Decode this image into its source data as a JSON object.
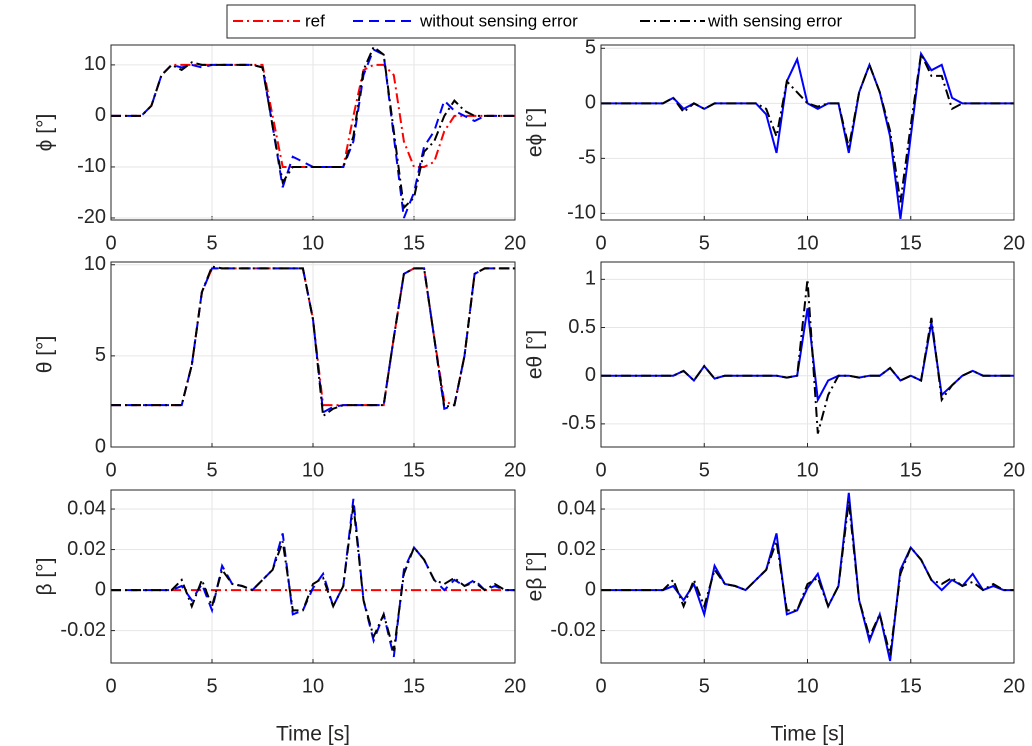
{
  "chart_data": [
    {
      "type": "line",
      "ylabel": "ϕ [°]",
      "x": [
        0,
        0.5,
        1,
        1.5,
        2,
        2.5,
        3,
        3.5,
        4,
        4.5,
        5,
        5.5,
        6,
        6.5,
        7,
        7.5,
        8,
        8.5,
        9,
        9.5,
        10,
        10.5,
        11,
        11.5,
        12,
        12.5,
        13,
        13.5,
        14,
        14.5,
        15,
        15.5,
        16,
        16.5,
        17,
        17.5,
        18,
        18.5,
        19,
        19.5,
        20
      ],
      "xlim": [
        0,
        20
      ],
      "xticks": [
        0,
        5,
        10,
        15,
        20
      ],
      "ylim": [
        -20.4,
        13.9
      ],
      "yticks": [
        -20,
        -10,
        0,
        10
      ],
      "grid": true,
      "series": [
        {
          "name": "ref",
          "color": "#ff0000",
          "dash": "dashdot",
          "values": [
            0,
            0,
            0,
            0,
            2,
            8,
            10,
            10,
            10,
            10,
            10,
            10,
            10,
            10,
            10,
            10,
            0,
            -10,
            -10,
            -10,
            -10,
            -10,
            -10,
            -10,
            0,
            9,
            10,
            10,
            8,
            -5,
            -10,
            -10,
            -9,
            -3,
            0,
            0,
            0,
            0,
            0,
            0,
            0
          ]
        },
        {
          "name": "without sensing error",
          "color": "#0000ff",
          "dash": "dashed",
          "values": [
            0,
            0,
            0,
            0,
            2,
            8,
            10,
            9.5,
            10,
            9.5,
            10,
            10,
            10,
            10,
            10,
            9.5,
            -2,
            -14,
            -8,
            -9,
            -10,
            -10,
            -10,
            -10,
            -5,
            8,
            13,
            12,
            -4,
            -20,
            -15,
            -6,
            -3,
            3,
            1,
            0,
            -1,
            0,
            0,
            0,
            0
          ]
        },
        {
          "name": "with sensing error",
          "color": "#000000",
          "dash": "dashdot",
          "values": [
            0,
            0,
            0,
            0,
            2,
            8,
            10,
            9,
            10.5,
            10,
            10,
            10,
            10,
            10,
            10,
            9.5,
            -2,
            -13,
            -10,
            -10,
            -10,
            -10,
            -10,
            -10,
            -4,
            9,
            13.5,
            12,
            -3,
            -18,
            -16,
            -7,
            -5,
            0,
            3,
            1,
            0,
            0,
            0,
            0,
            0
          ]
        }
      ]
    },
    {
      "type": "line",
      "ylabel": "eϕ [°]",
      "x": [
        0,
        0.5,
        1,
        1.5,
        2,
        2.5,
        3,
        3.5,
        4,
        4.5,
        5,
        5.5,
        6,
        6.5,
        7,
        7.5,
        8,
        8.5,
        9,
        9.5,
        10,
        10.5,
        11,
        11.5,
        12,
        12.5,
        13,
        13.5,
        14,
        14.5,
        15,
        15.5,
        16,
        16.5,
        17,
        17.5,
        18,
        18.5,
        19,
        19.5,
        20
      ],
      "xlim": [
        0,
        20
      ],
      "xticks": [
        0,
        5,
        10,
        15,
        20
      ],
      "ylim": [
        -10.6,
        5.3
      ],
      "yticks": [
        -10,
        -5,
        0,
        5
      ],
      "grid": true,
      "series": [
        {
          "name": "without sensing error",
          "color": "#0000ff",
          "dash": "solid",
          "values": [
            0,
            0,
            0,
            0,
            0,
            0,
            0,
            0.5,
            -0.5,
            0,
            -0.5,
            0,
            0,
            0,
            0,
            0,
            -1,
            -4.5,
            2,
            4,
            0,
            -0.5,
            0,
            0,
            -4.5,
            1,
            3.5,
            1,
            -3,
            -10.5,
            -3,
            4.5,
            3,
            3.5,
            0.5,
            0,
            0,
            0,
            0,
            0,
            0
          ]
        },
        {
          "name": "with sensing error",
          "color": "#000000",
          "dash": "dashdot",
          "values": [
            0,
            0,
            0,
            0,
            0,
            0,
            0,
            0.5,
            -0.8,
            0,
            -0.5,
            0,
            0,
            0,
            0,
            0,
            -0.5,
            -3,
            2,
            1,
            0,
            -0.3,
            0,
            0,
            -4,
            1,
            3.5,
            1,
            -2.5,
            -9,
            -2,
            4.5,
            2.5,
            2.5,
            -0.5,
            0,
            0,
            0,
            0,
            0,
            0
          ]
        }
      ]
    },
    {
      "type": "line",
      "ylabel": "θ [°]",
      "x": [
        0,
        0.5,
        1,
        1.5,
        2,
        2.5,
        3,
        3.5,
        4,
        4.5,
        5,
        5.5,
        6,
        6.5,
        7,
        7.5,
        8,
        8.5,
        9,
        9.5,
        10,
        10.5,
        11,
        11.5,
        12,
        12.5,
        13,
        13.5,
        14,
        14.5,
        15,
        15.5,
        16,
        16.5,
        17,
        17.5,
        18,
        18.5,
        19,
        19.5,
        20
      ],
      "xlim": [
        0,
        20
      ],
      "xticks": [
        0,
        5,
        10,
        15,
        20
      ],
      "ylim": [
        0,
        10.15
      ],
      "yticks": [
        0,
        5,
        10
      ],
      "grid": true,
      "series": [
        {
          "name": "ref",
          "color": "#ff0000",
          "dash": "dashdot",
          "values": [
            2.3,
            2.3,
            2.3,
            2.3,
            2.3,
            2.3,
            2.3,
            2.3,
            4.5,
            8.5,
            9.8,
            9.8,
            9.8,
            9.8,
            9.8,
            9.8,
            9.8,
            9.8,
            9.8,
            9.8,
            7,
            2.3,
            2.3,
            2.3,
            2.3,
            2.3,
            2.3,
            2.3,
            6,
            9.5,
            9.8,
            9.8,
            6,
            2.5,
            2.3,
            5,
            9.5,
            9.8,
            9.8,
            9.8,
            9.8
          ]
        },
        {
          "name": "without sensing error",
          "color": "#0000ff",
          "dash": "dashed",
          "values": [
            2.3,
            2.3,
            2.3,
            2.3,
            2.3,
            2.3,
            2.3,
            2.3,
            4.5,
            8.5,
            9.8,
            9.8,
            9.8,
            9.8,
            9.8,
            9.8,
            9.8,
            9.8,
            9.8,
            9.8,
            7,
            1.9,
            2.2,
            2.3,
            2.3,
            2.3,
            2.3,
            2.3,
            6,
            9.5,
            9.8,
            9.8,
            6,
            2.1,
            2.3,
            5,
            9.5,
            9.8,
            9.8,
            9.8,
            9.8
          ]
        },
        {
          "name": "with sensing error",
          "color": "#000000",
          "dash": "dashdot",
          "values": [
            2.3,
            2.3,
            2.3,
            2.3,
            2.3,
            2.3,
            2.3,
            2.3,
            4.5,
            8.5,
            9.9,
            9.8,
            9.8,
            9.8,
            9.8,
            9.8,
            9.8,
            9.8,
            9.8,
            9.8,
            7,
            1.7,
            2.1,
            2.3,
            2.3,
            2.3,
            2.3,
            2.3,
            6,
            9.5,
            9.8,
            9.8,
            6,
            2.2,
            2.3,
            5,
            9.5,
            9.8,
            9.8,
            9.8,
            9.8
          ]
        }
      ]
    },
    {
      "type": "line",
      "ylabel": "eθ [°]",
      "x": [
        0,
        0.5,
        1,
        1.5,
        2,
        2.5,
        3,
        3.5,
        4,
        4.5,
        5,
        5.5,
        6,
        6.5,
        7,
        7.5,
        8,
        8.5,
        9,
        9.5,
        10,
        10.5,
        11,
        11.5,
        12,
        12.5,
        13,
        13.5,
        14,
        14.5,
        15,
        15.5,
        16,
        16.5,
        17,
        17.5,
        18,
        18.5,
        19,
        19.5,
        20
      ],
      "xlim": [
        0,
        20
      ],
      "xticks": [
        0,
        5,
        10,
        15,
        20
      ],
      "ylim": [
        -0.74,
        1.18
      ],
      "yticks": [
        -0.5,
        0,
        0.5,
        1
      ],
      "grid": true,
      "series": [
        {
          "name": "without sensing error",
          "color": "#0000ff",
          "dash": "solid",
          "values": [
            0,
            0,
            0,
            0,
            0,
            0,
            0,
            0,
            0.05,
            -0.05,
            0.1,
            -0.03,
            0,
            0,
            0,
            0,
            0,
            0,
            -0.02,
            0,
            0.7,
            -0.25,
            -0.05,
            0,
            0,
            -0.02,
            0,
            0,
            0.08,
            -0.05,
            0,
            -0.05,
            0.55,
            -0.2,
            -0.1,
            0,
            0.05,
            0,
            0,
            0,
            0
          ]
        },
        {
          "name": "with sensing error",
          "color": "#000000",
          "dash": "dashdot",
          "values": [
            0,
            0,
            0,
            0,
            0,
            0,
            0,
            0,
            0.05,
            -0.05,
            0.1,
            -0.03,
            0,
            0,
            0,
            0,
            0,
            0,
            -0.02,
            0,
            1,
            -0.6,
            -0.2,
            0,
            0,
            -0.02,
            0,
            0,
            0.08,
            -0.05,
            0,
            -0.05,
            0.6,
            -0.25,
            -0.1,
            0,
            0.05,
            0,
            0,
            0,
            0
          ]
        }
      ]
    },
    {
      "type": "line",
      "ylabel": "β [°]",
      "xlabel": "Time [s]",
      "x": [
        0,
        0.5,
        1,
        1.5,
        2,
        2.5,
        3,
        3.5,
        4,
        4.5,
        5,
        5.5,
        6,
        6.5,
        7,
        7.5,
        8,
        8.5,
        9,
        9.5,
        10,
        10.5,
        11,
        11.5,
        12,
        12.5,
        13,
        13.5,
        14,
        14.5,
        15,
        15.5,
        16,
        16.5,
        17,
        17.5,
        18,
        18.5,
        19,
        19.5,
        20
      ],
      "xlim": [
        0,
        20
      ],
      "xticks": [
        0,
        5,
        10,
        15,
        20
      ],
      "ylim": [
        -0.036,
        0.0494
      ],
      "yticks": [
        -0.02,
        0,
        0.02,
        0.04
      ],
      "grid": true,
      "series": [
        {
          "name": "ref",
          "color": "#ff0000",
          "dash": "dashdot",
          "values": [
            0,
            0,
            0,
            0,
            0,
            0,
            0,
            0,
            0,
            0,
            0,
            0,
            0,
            0,
            0,
            0,
            0,
            0,
            0,
            0,
            0,
            0,
            0,
            0,
            0,
            0,
            0,
            0,
            0,
            0,
            0,
            0,
            0,
            0,
            0,
            0,
            0,
            0,
            0,
            0,
            0
          ]
        },
        {
          "name": "without sensing error",
          "color": "#0000ff",
          "dash": "dashed",
          "values": [
            0,
            0,
            0,
            0,
            0,
            0,
            0,
            0.002,
            -0.005,
            0.003,
            -0.01,
            0.012,
            0.003,
            0.002,
            0,
            0.005,
            0.01,
            0.028,
            -0.012,
            -0.01,
            0.001,
            0.008,
            -0.008,
            0.002,
            0.045,
            -0.005,
            -0.025,
            -0.012,
            -0.033,
            0.01,
            0.021,
            0.015,
            0.005,
            0,
            0.005,
            0.002,
            0.005,
            0,
            0.002,
            0,
            0
          ]
        },
        {
          "name": "with sensing error",
          "color": "#000000",
          "dash": "dashdot",
          "values": [
            0,
            0,
            0,
            0,
            0,
            0,
            0,
            0.005,
            -0.008,
            0.005,
            -0.008,
            0.01,
            0.003,
            0.002,
            0,
            0.005,
            0.01,
            0.024,
            -0.01,
            -0.01,
            0.003,
            0.006,
            -0.008,
            0.002,
            0.042,
            -0.005,
            -0.023,
            -0.012,
            -0.03,
            0.008,
            0.021,
            0.015,
            0.005,
            0.003,
            0.006,
            0.002,
            0.004,
            0,
            0.003,
            0,
            0
          ]
        }
      ]
    },
    {
      "type": "line",
      "ylabel": "eβ [°]",
      "xlabel": "Time [s]",
      "x": [
        0,
        0.5,
        1,
        1.5,
        2,
        2.5,
        3,
        3.5,
        4,
        4.5,
        5,
        5.5,
        6,
        6.5,
        7,
        7.5,
        8,
        8.5,
        9,
        9.5,
        10,
        10.5,
        11,
        11.5,
        12,
        12.5,
        13,
        13.5,
        14,
        14.5,
        15,
        15.5,
        16,
        16.5,
        17,
        17.5,
        18,
        18.5,
        19,
        19.5,
        20
      ],
      "xlim": [
        0,
        20
      ],
      "xticks": [
        0,
        5,
        10,
        15,
        20
      ],
      "ylim": [
        -0.036,
        0.0494
      ],
      "yticks": [
        -0.02,
        0,
        0.02,
        0.04
      ],
      "grid": true,
      "series": [
        {
          "name": "without sensing error",
          "color": "#0000ff",
          "dash": "solid",
          "values": [
            0,
            0,
            0,
            0,
            0,
            0,
            0,
            0.002,
            -0.005,
            0.003,
            -0.012,
            0.012,
            0.003,
            0.002,
            0,
            0.005,
            0.01,
            0.028,
            -0.012,
            -0.01,
            0.001,
            0.008,
            -0.008,
            0.002,
            0.048,
            -0.005,
            -0.025,
            -0.012,
            -0.035,
            0.01,
            0.021,
            0.015,
            0.005,
            0,
            0.005,
            0.002,
            0.008,
            0,
            0.002,
            0,
            0
          ]
        },
        {
          "name": "with sensing error",
          "color": "#000000",
          "dash": "dashdot",
          "values": [
            0,
            0,
            0,
            0,
            0,
            0,
            0,
            0.005,
            -0.008,
            0.005,
            -0.008,
            0.01,
            0.003,
            0.002,
            0,
            0.005,
            0.01,
            0.024,
            -0.01,
            -0.01,
            0.003,
            0.006,
            -0.008,
            0.002,
            0.044,
            -0.005,
            -0.023,
            -0.012,
            -0.032,
            0.008,
            0.021,
            0.015,
            0.005,
            0.003,
            0.006,
            0.002,
            0.004,
            0,
            0.003,
            0,
            0
          ]
        }
      ]
    }
  ]
}
